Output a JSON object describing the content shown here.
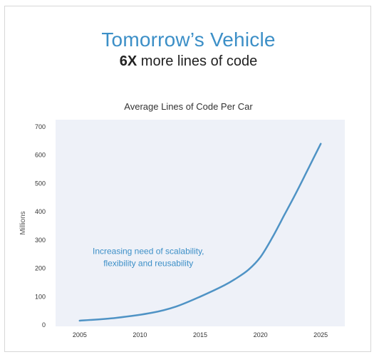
{
  "header": {
    "title": "Tomorrow’s Vehicle",
    "subtitle_strong": "6X",
    "subtitle_rest": " more lines of code"
  },
  "chart_data": {
    "type": "line",
    "title": "Average Lines of Code Per Car",
    "xlabel": "",
    "ylabel": "Millions",
    "xlim": [
      2003,
      2027
    ],
    "ylim": [
      0,
      700
    ],
    "xticks": [
      2005,
      2010,
      2015,
      2020,
      2025
    ],
    "yticks": [
      0,
      100,
      200,
      300,
      400,
      500,
      600,
      700
    ],
    "grid": false,
    "plot_background": "#eef1f8",
    "series": [
      {
        "color": "#4f93c5",
        "x": [
          2005,
          2008,
          2011,
          2013,
          2015,
          2017,
          2018,
          2019,
          2020,
          2021,
          2022,
          2023,
          2024,
          2025
        ],
        "y": [
          15,
          25,
          43,
          65,
          100,
          140,
          165,
          195,
          240,
          310,
          390,
          470,
          555,
          640
        ]
      }
    ],
    "annotations": [
      {
        "line1": "Increasing need of scalability,",
        "line2": "flexibility and reusability",
        "x": 2010.7,
        "y": 250
      }
    ]
  }
}
